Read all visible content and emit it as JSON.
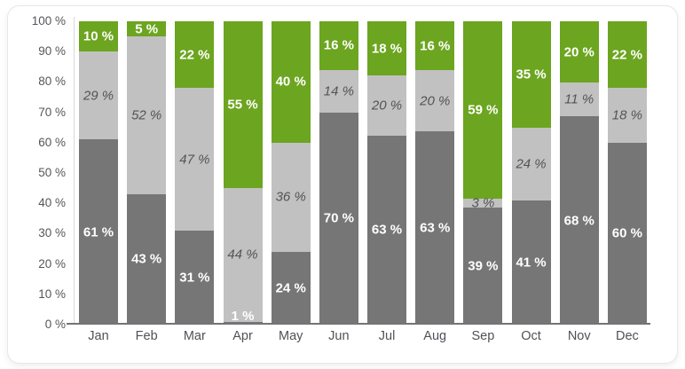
{
  "colors": {
    "dark_gray": "#767676",
    "light_gray": "#c1c1c1",
    "green": "#6ca51f",
    "card_border": "#e7e7e9",
    "axis_line": "#737478",
    "y_axis_line": "#d8d8d8",
    "tick_text": "#55565a",
    "italic_label_text": "#545458",
    "white_label_text": "#ffffff"
  },
  "chart_data": {
    "type": "bar",
    "variant": "stacked-100-percent",
    "title": "",
    "xlabel": "",
    "ylabel": "",
    "unit": "%",
    "ylim": [
      0,
      100
    ],
    "grid": false,
    "legend": "none",
    "label_format": "{v} %",
    "categories": [
      "Jan",
      "Feb",
      "Mar",
      "Apr",
      "May",
      "Jun",
      "Jul",
      "Aug",
      "Sep",
      "Oct",
      "Nov",
      "Dec"
    ],
    "y_ticks": [
      "100 %",
      "90 %",
      "80 %",
      "70 %",
      "60 %",
      "50 %",
      "40 %",
      "30 %",
      "20 %",
      "10 %",
      "0 %"
    ],
    "series": [
      {
        "name": "dark-gray-bottom",
        "color": "#767676",
        "label_style": "white",
        "values": [
          61,
          43,
          31,
          1,
          24,
          70,
          63,
          63,
          39,
          41,
          68,
          60
        ],
        "labels": [
          "61 %",
          "43 %",
          "31 %",
          "1 %",
          "24 %",
          "70 %",
          "63 %",
          "63 %",
          "39 %",
          "41 %",
          "68 %",
          "60 %"
        ]
      },
      {
        "name": "light-gray-middle",
        "color": "#c1c1c1",
        "label_style": "italic-gray",
        "values": [
          29,
          52,
          47,
          44,
          36,
          14,
          20,
          20,
          3,
          24,
          11,
          18
        ],
        "labels": [
          "29 %",
          "52 %",
          "47 %",
          "44 %",
          "36 %",
          "14 %",
          "20 %",
          "20 %",
          "3 %",
          "24 %",
          "11 %",
          "18 %"
        ]
      },
      {
        "name": "green-top",
        "color": "#6ca51f",
        "label_style": "white",
        "values": [
          10,
          5,
          22,
          55,
          40,
          16,
          18,
          16,
          59,
          35,
          20,
          22
        ],
        "labels": [
          "10 %",
          "5 %",
          "22 %",
          "55 %",
          "40 %",
          "16 %",
          "18 %",
          "16 %",
          "59 %",
          "35 %",
          "20 %",
          "22 %"
        ]
      }
    ]
  }
}
